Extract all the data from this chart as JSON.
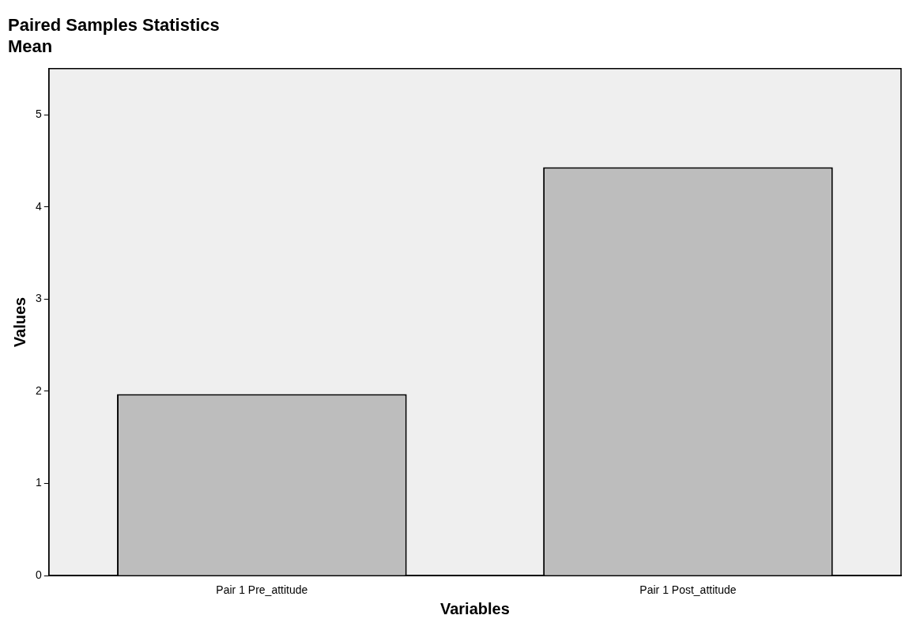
{
  "chart_data": {
    "type": "bar",
    "title": "Paired Samples Statistics",
    "subtitle": "Mean",
    "xlabel": "Variables",
    "ylabel": "Values",
    "categories": [
      "Pair 1 Pre_attitude",
      "Pair 1 Post_attitude"
    ],
    "values": [
      1.97,
      4.43
    ],
    "color": "#bdbdbd",
    "ylim": [
      0,
      5.5
    ],
    "yticks": [
      0,
      1,
      2,
      3,
      4,
      5
    ],
    "grid": false,
    "legend": false
  }
}
